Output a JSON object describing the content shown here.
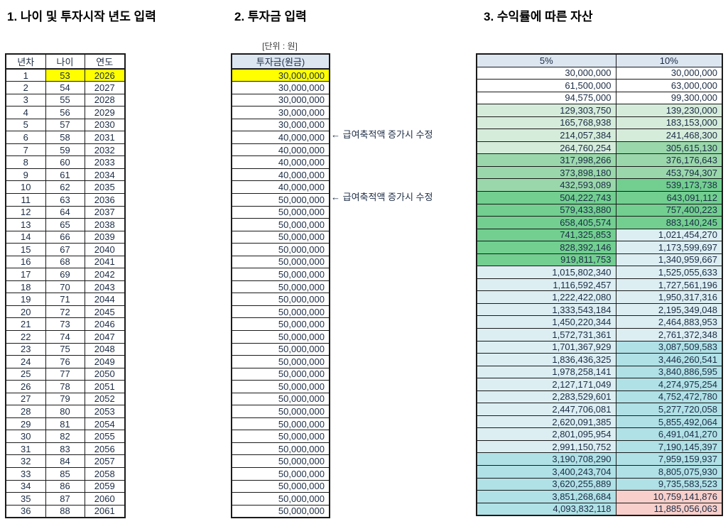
{
  "titles": {
    "section1": "1. 나이 및 투자시작 년도 입력",
    "section2": "2. 투자금 입력",
    "section3": "3. 수익률에 따른 자산"
  },
  "unit_label": "[단위 : 원]",
  "annotation": {
    "text": "← 급여축적액 증가시 수정",
    "at_rows": [
      6,
      11
    ]
  },
  "highlight": {
    "row": 1,
    "color": "#ffff00"
  },
  "colors": {
    "header_fill": "#dce6f1",
    "border": "#1a1a1a",
    "text": "#1c2c45",
    "highlight": "#ffff00"
  },
  "table1": {
    "headers": [
      "년차",
      "나이",
      "연도"
    ],
    "rows": [
      [
        1,
        53,
        2026
      ],
      [
        2,
        54,
        2027
      ],
      [
        3,
        55,
        2028
      ],
      [
        4,
        56,
        2029
      ],
      [
        5,
        57,
        2030
      ],
      [
        6,
        58,
        2031
      ],
      [
        7,
        59,
        2032
      ],
      [
        8,
        60,
        2033
      ],
      [
        9,
        61,
        2034
      ],
      [
        10,
        62,
        2035
      ],
      [
        11,
        63,
        2036
      ],
      [
        12,
        64,
        2037
      ],
      [
        13,
        65,
        2038
      ],
      [
        14,
        66,
        2039
      ],
      [
        15,
        67,
        2040
      ],
      [
        16,
        68,
        2041
      ],
      [
        17,
        69,
        2042
      ],
      [
        18,
        70,
        2043
      ],
      [
        19,
        71,
        2044
      ],
      [
        20,
        72,
        2045
      ],
      [
        21,
        73,
        2046
      ],
      [
        22,
        74,
        2047
      ],
      [
        23,
        75,
        2048
      ],
      [
        24,
        76,
        2049
      ],
      [
        25,
        77,
        2050
      ],
      [
        26,
        78,
        2051
      ],
      [
        27,
        79,
        2052
      ],
      [
        28,
        80,
        2053
      ],
      [
        29,
        81,
        2054
      ],
      [
        30,
        82,
        2055
      ],
      [
        31,
        83,
        2056
      ],
      [
        32,
        84,
        2057
      ],
      [
        33,
        85,
        2058
      ],
      [
        34,
        86,
        2059
      ],
      [
        35,
        87,
        2060
      ],
      [
        36,
        88,
        2061
      ]
    ]
  },
  "table2": {
    "header": "투자금(원금)",
    "values": [
      30000000,
      30000000,
      30000000,
      30000000,
      30000000,
      40000000,
      40000000,
      40000000,
      40000000,
      40000000,
      50000000,
      50000000,
      50000000,
      50000000,
      50000000,
      50000000,
      50000000,
      50000000,
      50000000,
      50000000,
      50000000,
      50000000,
      50000000,
      50000000,
      50000000,
      50000000,
      50000000,
      50000000,
      50000000,
      50000000,
      50000000,
      50000000,
      50000000,
      50000000,
      50000000,
      50000000
    ]
  },
  "table3": {
    "headers": [
      "5%",
      "10%"
    ],
    "rows": [
      [
        30000000,
        30000000
      ],
      [
        61500000,
        63000000
      ],
      [
        94575000,
        99300000
      ],
      [
        129303750,
        139230000
      ],
      [
        165768938,
        183153000
      ],
      [
        214057384,
        241468300
      ],
      [
        264760254,
        305615130
      ],
      [
        317998266,
        376176643
      ],
      [
        373898180,
        453794307
      ],
      [
        432593089,
        539173738
      ],
      [
        504222743,
        643091112
      ],
      [
        579433880,
        757400223
      ],
      [
        658405574,
        883140245
      ],
      [
        741325853,
        1021454270
      ],
      [
        828392146,
        1173599697
      ],
      [
        919811753,
        1340959667
      ],
      [
        1015802340,
        1525055633
      ],
      [
        1116592457,
        1727561196
      ],
      [
        1222422080,
        1950317316
      ],
      [
        1333543184,
        2195349048
      ],
      [
        1450220344,
        2464883953
      ],
      [
        1572731361,
        2761372348
      ],
      [
        1701367929,
        3087509583
      ],
      [
        1836436325,
        3446260541
      ],
      [
        1978258141,
        3840886595
      ],
      [
        2127171049,
        4274975254
      ],
      [
        2283529601,
        4752472780
      ],
      [
        2447706081,
        5277720058
      ],
      [
        2620091385,
        5855492064
      ],
      [
        2801095954,
        6491041270
      ],
      [
        2991150752,
        7190145397
      ],
      [
        3190708290,
        7959159937
      ],
      [
        3400243704,
        8805075930
      ],
      [
        3620255889,
        9735583523
      ],
      [
        3851268684,
        10759141876
      ],
      [
        4093832118,
        11885056063
      ]
    ],
    "color_scale": [
      {
        "min": 0,
        "max": 100000000,
        "color": "#ffffff"
      },
      {
        "min": 100000000,
        "max": 300000000,
        "color": "#d6ecdb"
      },
      {
        "min": 300000000,
        "max": 500000000,
        "color": "#9ad8ab"
      },
      {
        "min": 500000000,
        "max": 1000000000,
        "color": "#72cf90"
      },
      {
        "min": 1000000000,
        "max": 3000000000,
        "color": "#dceef2"
      },
      {
        "min": 3000000000,
        "max": 10000000000,
        "color": "#b0e1e6"
      },
      {
        "min": 10000000000,
        "max": null,
        "color": "#f8cfca"
      }
    ]
  }
}
